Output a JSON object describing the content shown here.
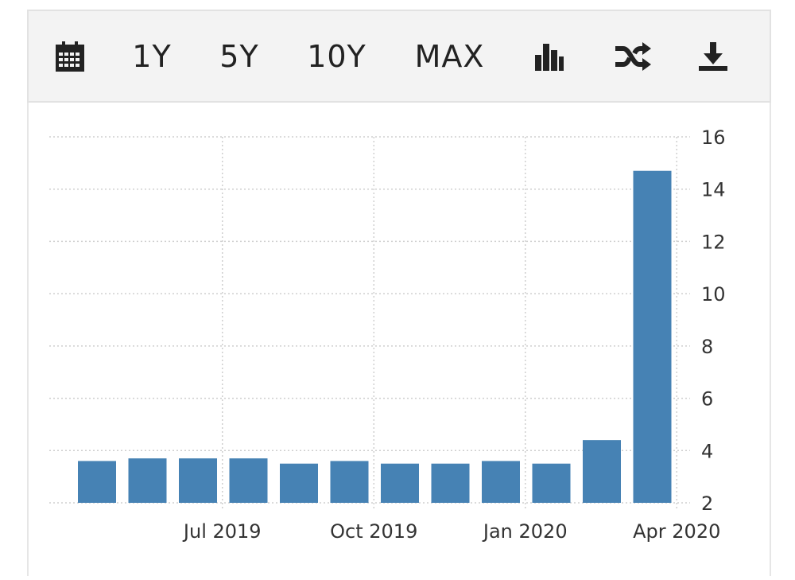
{
  "toolbar": {
    "items": [
      {
        "name": "calendar-icon",
        "icon": "calendar"
      },
      {
        "name": "range-1y-button",
        "label": "1Y"
      },
      {
        "name": "range-5y-button",
        "label": "5Y"
      },
      {
        "name": "range-10y-button",
        "label": "10Y"
      },
      {
        "name": "range-max-button",
        "label": "MAX"
      },
      {
        "name": "bar-chart-icon",
        "icon": "bar-chart"
      },
      {
        "name": "shuffle-icon",
        "icon": "shuffle"
      },
      {
        "name": "download-icon",
        "icon": "download"
      }
    ]
  },
  "chart_data": {
    "type": "bar",
    "title": "",
    "xlabel": "",
    "ylabel": "",
    "ylim": [
      2,
      16
    ],
    "yticks": [
      2,
      4,
      6,
      8,
      10,
      12,
      14,
      16
    ],
    "y_axis_position": "right",
    "grid": true,
    "color": "#4682b4",
    "categories": [
      "May 2019",
      "Jun 2019",
      "Jul 2019",
      "Aug 2019",
      "Sep 2019",
      "Oct 2019",
      "Nov 2019",
      "Dec 2019",
      "Jan 2020",
      "Feb 2020",
      "Mar 2020",
      "Apr 2020"
    ],
    "values": [
      3.6,
      3.7,
      3.7,
      3.7,
      3.5,
      3.6,
      3.5,
      3.5,
      3.6,
      3.5,
      4.4,
      14.7
    ],
    "xtick_labels": [
      {
        "category": "Jul 2019",
        "label": "Jul 2019"
      },
      {
        "category": "Oct 2019",
        "label": "Oct 2019"
      },
      {
        "category": "Jan 2020",
        "label": "Jan 2020"
      },
      {
        "category": "Apr 2020",
        "label": "Apr 2020"
      }
    ]
  }
}
